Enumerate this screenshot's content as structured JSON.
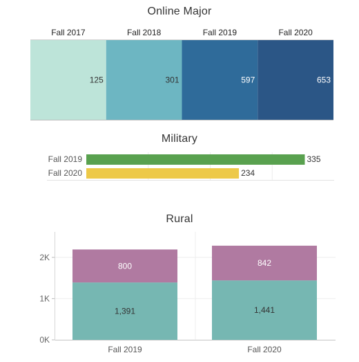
{
  "chart_data": [
    {
      "type": "heatmap",
      "title": "Online Major",
      "categories": [
        "Fall 2017",
        "Fall 2018",
        "Fall 2019",
        "Fall 2020"
      ],
      "values": [
        125,
        301,
        597,
        653
      ],
      "value_labels": [
        "125",
        "301",
        "597",
        "653"
      ],
      "colors": [
        "#bde4d9",
        "#6db6c2",
        "#2f6b9a",
        "#2b5686"
      ],
      "label_colors": [
        "#333333",
        "#333333",
        "#ffffff",
        "#ffffff"
      ]
    },
    {
      "type": "bar",
      "orientation": "horizontal",
      "title": "Military",
      "categories": [
        "Fall 2019",
        "Fall 2020"
      ],
      "values": [
        335,
        234
      ],
      "value_labels": [
        "335",
        "234"
      ],
      "colors": [
        "#59a14f",
        "#edc948"
      ],
      "xlim": [
        0,
        380
      ],
      "grid": true
    },
    {
      "type": "bar",
      "stacked": true,
      "title": "Rural",
      "categories": [
        "Fall 2019",
        "Fall 2020"
      ],
      "series": [
        {
          "values": [
            1391,
            1441
          ],
          "value_labels": [
            "1,391",
            "1,441"
          ],
          "color": "#76b7b2"
        },
        {
          "values": [
            800,
            842
          ],
          "value_labels": [
            "800",
            "842"
          ],
          "color": "#b07aa1"
        }
      ],
      "ylim": [
        0,
        2450
      ],
      "yticks": [
        0,
        1000,
        2000
      ],
      "ytick_labels": [
        "0K",
        "1K",
        "2K"
      ],
      "grid": true
    }
  ]
}
